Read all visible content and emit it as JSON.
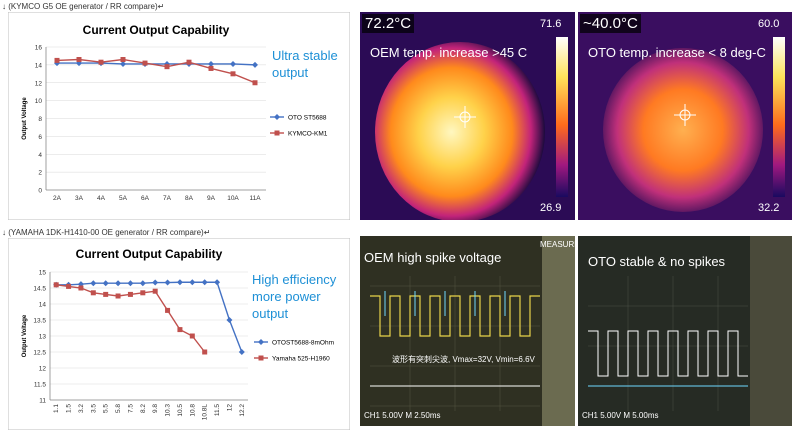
{
  "captions": {
    "top": "↓ (KYMCO G5 OE generator / RR compare)↵",
    "bottom": "↓ (YAMAHA 1DK-H1410-00 OE generator / RR compare)↵"
  },
  "chart_data": [
    {
      "type": "line",
      "title": "Current Output Capability",
      "ylabel": "Output Voltage",
      "xlabel": "",
      "categories": [
        "2A",
        "3A",
        "4A",
        "5A",
        "6A",
        "7A",
        "8A",
        "9A",
        "10A",
        "11A"
      ],
      "ylim": [
        0,
        16
      ],
      "yticks": [
        0,
        2,
        4,
        6,
        8,
        10,
        12,
        14,
        16
      ],
      "series": [
        {
          "name": "OTO ST5688",
          "color": "#4472C4",
          "marker": "diamond",
          "values": [
            14.2,
            14.2,
            14.2,
            14.1,
            14.1,
            14.1,
            14.1,
            14.1,
            14.1,
            14.0
          ]
        },
        {
          "name": "KYMCO-KM1",
          "color": "#C0504D",
          "marker": "square",
          "values": [
            14.5,
            14.6,
            14.3,
            14.6,
            14.2,
            13.8,
            14.3,
            13.6,
            13.0,
            12.0
          ]
        }
      ],
      "annotation": "Ultra stable output",
      "legend": "right"
    },
    {
      "type": "line",
      "title": "Current Output Capability",
      "ylabel": "Output Voltage",
      "xlabel": "",
      "categories": [
        "1.1",
        "1.5",
        "3.2",
        "3.5",
        "5.5",
        "5.8",
        "7.5",
        "8.2",
        "9.8",
        "10.3",
        "10.5",
        "10.8",
        "10.8L",
        "11.5",
        "12",
        "12.2"
      ],
      "ylim": [
        11,
        15
      ],
      "yticks": [
        11,
        11.5,
        12,
        12.5,
        13,
        13.5,
        14,
        14.5,
        15
      ],
      "series": [
        {
          "name": "OTOST5688-8mOhm",
          "color": "#4472C4",
          "marker": "diamond",
          "values": [
            14.6,
            14.6,
            14.62,
            14.65,
            14.65,
            14.65,
            14.65,
            14.65,
            14.67,
            14.67,
            14.68,
            14.68,
            14.68,
            14.68,
            13.5,
            12.5
          ]
        },
        {
          "name": "Yamaha 525-H1960",
          "color": "#C0504D",
          "marker": "square",
          "values": [
            14.6,
            14.55,
            14.5,
            14.35,
            14.3,
            14.25,
            14.3,
            14.35,
            14.4,
            13.8,
            13.2,
            13.0,
            12.5,
            null,
            null,
            null
          ]
        }
      ],
      "annotation": "High efficiency more power output",
      "legend": "right"
    }
  ],
  "thermal": {
    "oem": {
      "reading": "72.2°C",
      "scale_max": "71.6",
      "scale_min": "26.9",
      "label": "OEM temp. increase >45 C"
    },
    "oto": {
      "reading": "~40.0°C",
      "scale_max": "60.0",
      "scale_min": "32.2",
      "label": "OTO temp. increase < 8 deg-C"
    }
  },
  "scope": {
    "oem": {
      "label": "OEM  high spike voltage",
      "side": "MEASURE",
      "footer": "CH1  5.00V  M 2.50ms",
      "readout": "波形有突刺尖波, Vmax=32V, Vmin=6.6V"
    },
    "oto": {
      "label": "OTO stable & no spikes",
      "footer": "CH1  5.00V  M 5.00ms"
    }
  },
  "colors": {
    "annotation": "#1E90D6",
    "oto": "#4472C4",
    "oem": "#C0504D"
  }
}
